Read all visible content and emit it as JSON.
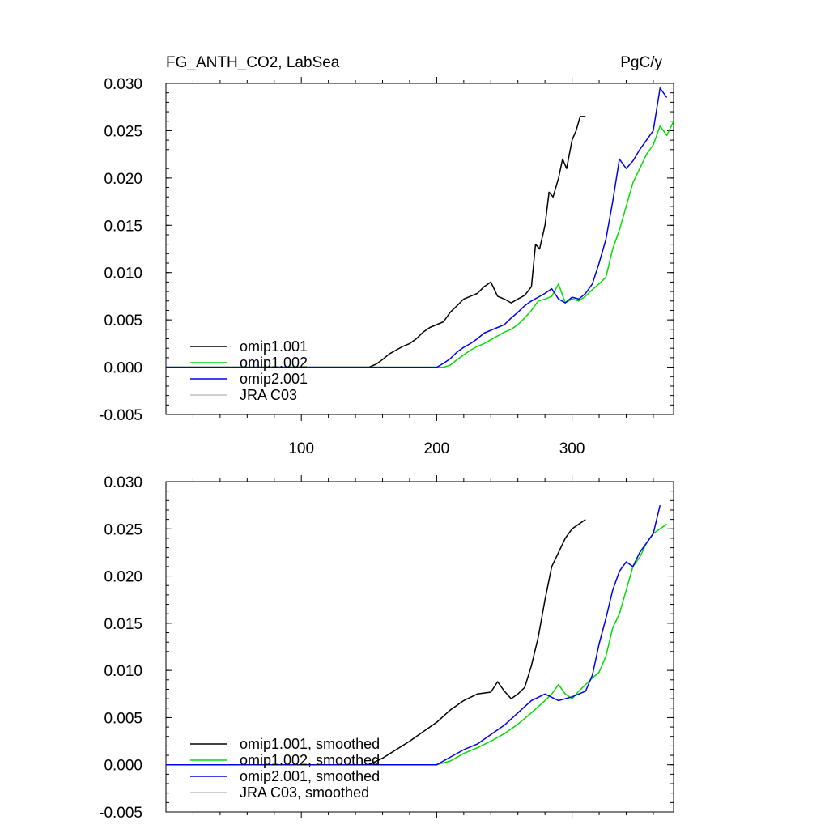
{
  "chart_data": [
    {
      "type": "line",
      "title": "FG_ANTH_CO2, LabSea",
      "units": "PgC/y",
      "xlim": [
        0,
        375
      ],
      "ylim": [
        -0.005,
        0.03
      ],
      "x_ticks": [
        100,
        200,
        300
      ],
      "x_tick_labels": [
        "100",
        "200",
        "300"
      ],
      "y_ticks": [
        -0.005,
        0,
        0.005,
        0.01,
        0.015,
        0.02,
        0.025,
        0.03
      ],
      "y_tick_labels": [
        "-0.005",
        "0.000",
        "0.005",
        "0.010",
        "0.015",
        "0.020",
        "0.025",
        "0.030"
      ],
      "legend_position": "bottom-left",
      "series": [
        {
          "name": "omip1.001",
          "color": "#000000",
          "x": [
            0,
            150,
            155,
            160,
            165,
            170,
            175,
            180,
            185,
            190,
            195,
            200,
            205,
            210,
            215,
            220,
            225,
            230,
            235,
            240,
            245,
            250,
            255,
            260,
            265,
            270,
            273,
            276,
            280,
            283,
            286,
            290,
            293,
            296,
            300,
            303,
            306,
            310
          ],
          "y": [
            0,
            0,
            0.0003,
            0.0008,
            0.0014,
            0.0018,
            0.0022,
            0.0025,
            0.003,
            0.0037,
            0.0042,
            0.0045,
            0.0048,
            0.0058,
            0.0065,
            0.0072,
            0.0075,
            0.0078,
            0.0085,
            0.009,
            0.0075,
            0.0072,
            0.0068,
            0.0072,
            0.0076,
            0.0085,
            0.013,
            0.0125,
            0.015,
            0.0185,
            0.018,
            0.02,
            0.022,
            0.021,
            0.024,
            0.025,
            0.0265,
            0.0265
          ]
        },
        {
          "name": "omip1.002",
          "color": "#00dd00",
          "x": [
            0,
            200,
            205,
            210,
            215,
            220,
            225,
            230,
            235,
            240,
            245,
            250,
            255,
            260,
            265,
            270,
            275,
            280,
            285,
            290,
            295,
            300,
            305,
            310,
            315,
            320,
            325,
            330,
            335,
            340,
            345,
            350,
            355,
            360,
            365,
            370,
            375
          ],
          "y": [
            0,
            0,
            0,
            0.0002,
            0.0008,
            0.0013,
            0.0018,
            0.0022,
            0.0025,
            0.0029,
            0.0033,
            0.0037,
            0.004,
            0.0045,
            0.0052,
            0.006,
            0.007,
            0.0072,
            0.0075,
            0.0088,
            0.0068,
            0.0072,
            0.007,
            0.0075,
            0.0082,
            0.0088,
            0.0095,
            0.0125,
            0.0145,
            0.017,
            0.0195,
            0.021,
            0.0225,
            0.0235,
            0.0255,
            0.0245,
            0.026
          ]
        },
        {
          "name": "omip2.001",
          "color": "#0000ee",
          "x": [
            0,
            200,
            205,
            210,
            215,
            220,
            225,
            230,
            235,
            240,
            245,
            250,
            255,
            260,
            265,
            270,
            275,
            280,
            285,
            290,
            295,
            300,
            305,
            310,
            315,
            320,
            325,
            330,
            335,
            340,
            345,
            350,
            355,
            360,
            365,
            370
          ],
          "y": [
            0,
            0,
            0.0004,
            0.0009,
            0.0016,
            0.0021,
            0.0025,
            0.003,
            0.0036,
            0.0039,
            0.0042,
            0.0045,
            0.0052,
            0.0058,
            0.0065,
            0.007,
            0.0074,
            0.0078,
            0.0083,
            0.0072,
            0.0068,
            0.0074,
            0.0072,
            0.0078,
            0.0088,
            0.011,
            0.0135,
            0.0175,
            0.022,
            0.021,
            0.0218,
            0.023,
            0.024,
            0.025,
            0.0295,
            0.0285
          ]
        },
        {
          "name": "JRA C03",
          "color": "#c0c0c0",
          "x": [],
          "y": []
        }
      ]
    },
    {
      "type": "line",
      "title": "",
      "xlim": [
        0,
        375
      ],
      "ylim": [
        -0.005,
        0.03
      ],
      "x_ticks": [
        100,
        200,
        300
      ],
      "x_tick_labels": [],
      "y_ticks": [
        -0.005,
        0,
        0.005,
        0.01,
        0.015,
        0.02,
        0.025,
        0.03
      ],
      "y_tick_labels": [
        "-0.005",
        "0.000",
        "0.005",
        "0.010",
        "0.015",
        "0.020",
        "0.025",
        "0.030"
      ],
      "legend_position": "bottom-left",
      "series": [
        {
          "name": "omip1.001, smoothed",
          "color": "#000000",
          "x": [
            0,
            150,
            160,
            170,
            180,
            190,
            200,
            210,
            220,
            230,
            240,
            245,
            250,
            255,
            260,
            265,
            270,
            275,
            280,
            285,
            290,
            295,
            300,
            305,
            310
          ],
          "y": [
            0,
            0,
            0.0007,
            0.0016,
            0.0025,
            0.0035,
            0.0045,
            0.0058,
            0.0068,
            0.0075,
            0.0077,
            0.0088,
            0.0078,
            0.007,
            0.0075,
            0.0082,
            0.0105,
            0.0135,
            0.0175,
            0.021,
            0.0225,
            0.024,
            0.025,
            0.0255,
            0.026
          ]
        },
        {
          "name": "omip1.002, smoothed",
          "color": "#00dd00",
          "x": [
            0,
            200,
            210,
            220,
            230,
            240,
            250,
            260,
            270,
            280,
            285,
            290,
            295,
            300,
            305,
            310,
            315,
            320,
            325,
            330,
            335,
            340,
            345,
            350,
            355,
            360,
            365,
            370
          ],
          "y": [
            0,
            0,
            0.0004,
            0.0012,
            0.0018,
            0.0025,
            0.0033,
            0.0043,
            0.0055,
            0.0068,
            0.0075,
            0.0085,
            0.0075,
            0.007,
            0.0078,
            0.0085,
            0.0092,
            0.0098,
            0.0115,
            0.0145,
            0.016,
            0.0185,
            0.021,
            0.022,
            0.0235,
            0.0245,
            0.025,
            0.0255
          ]
        },
        {
          "name": "omip2.001, smoothed",
          "color": "#0000ee",
          "x": [
            0,
            200,
            210,
            220,
            230,
            240,
            250,
            260,
            270,
            280,
            290,
            300,
            310,
            315,
            320,
            325,
            330,
            335,
            340,
            345,
            350,
            355,
            360,
            365
          ],
          "y": [
            0,
            0,
            0.0008,
            0.0016,
            0.0022,
            0.0032,
            0.0042,
            0.0055,
            0.0068,
            0.0075,
            0.0068,
            0.0072,
            0.0078,
            0.0095,
            0.0128,
            0.0155,
            0.0185,
            0.0205,
            0.0215,
            0.021,
            0.0225,
            0.0235,
            0.0245,
            0.0275
          ]
        },
        {
          "name": "JRA C03, smoothed",
          "color": "#c0c0c0",
          "x": [],
          "y": []
        }
      ]
    }
  ]
}
